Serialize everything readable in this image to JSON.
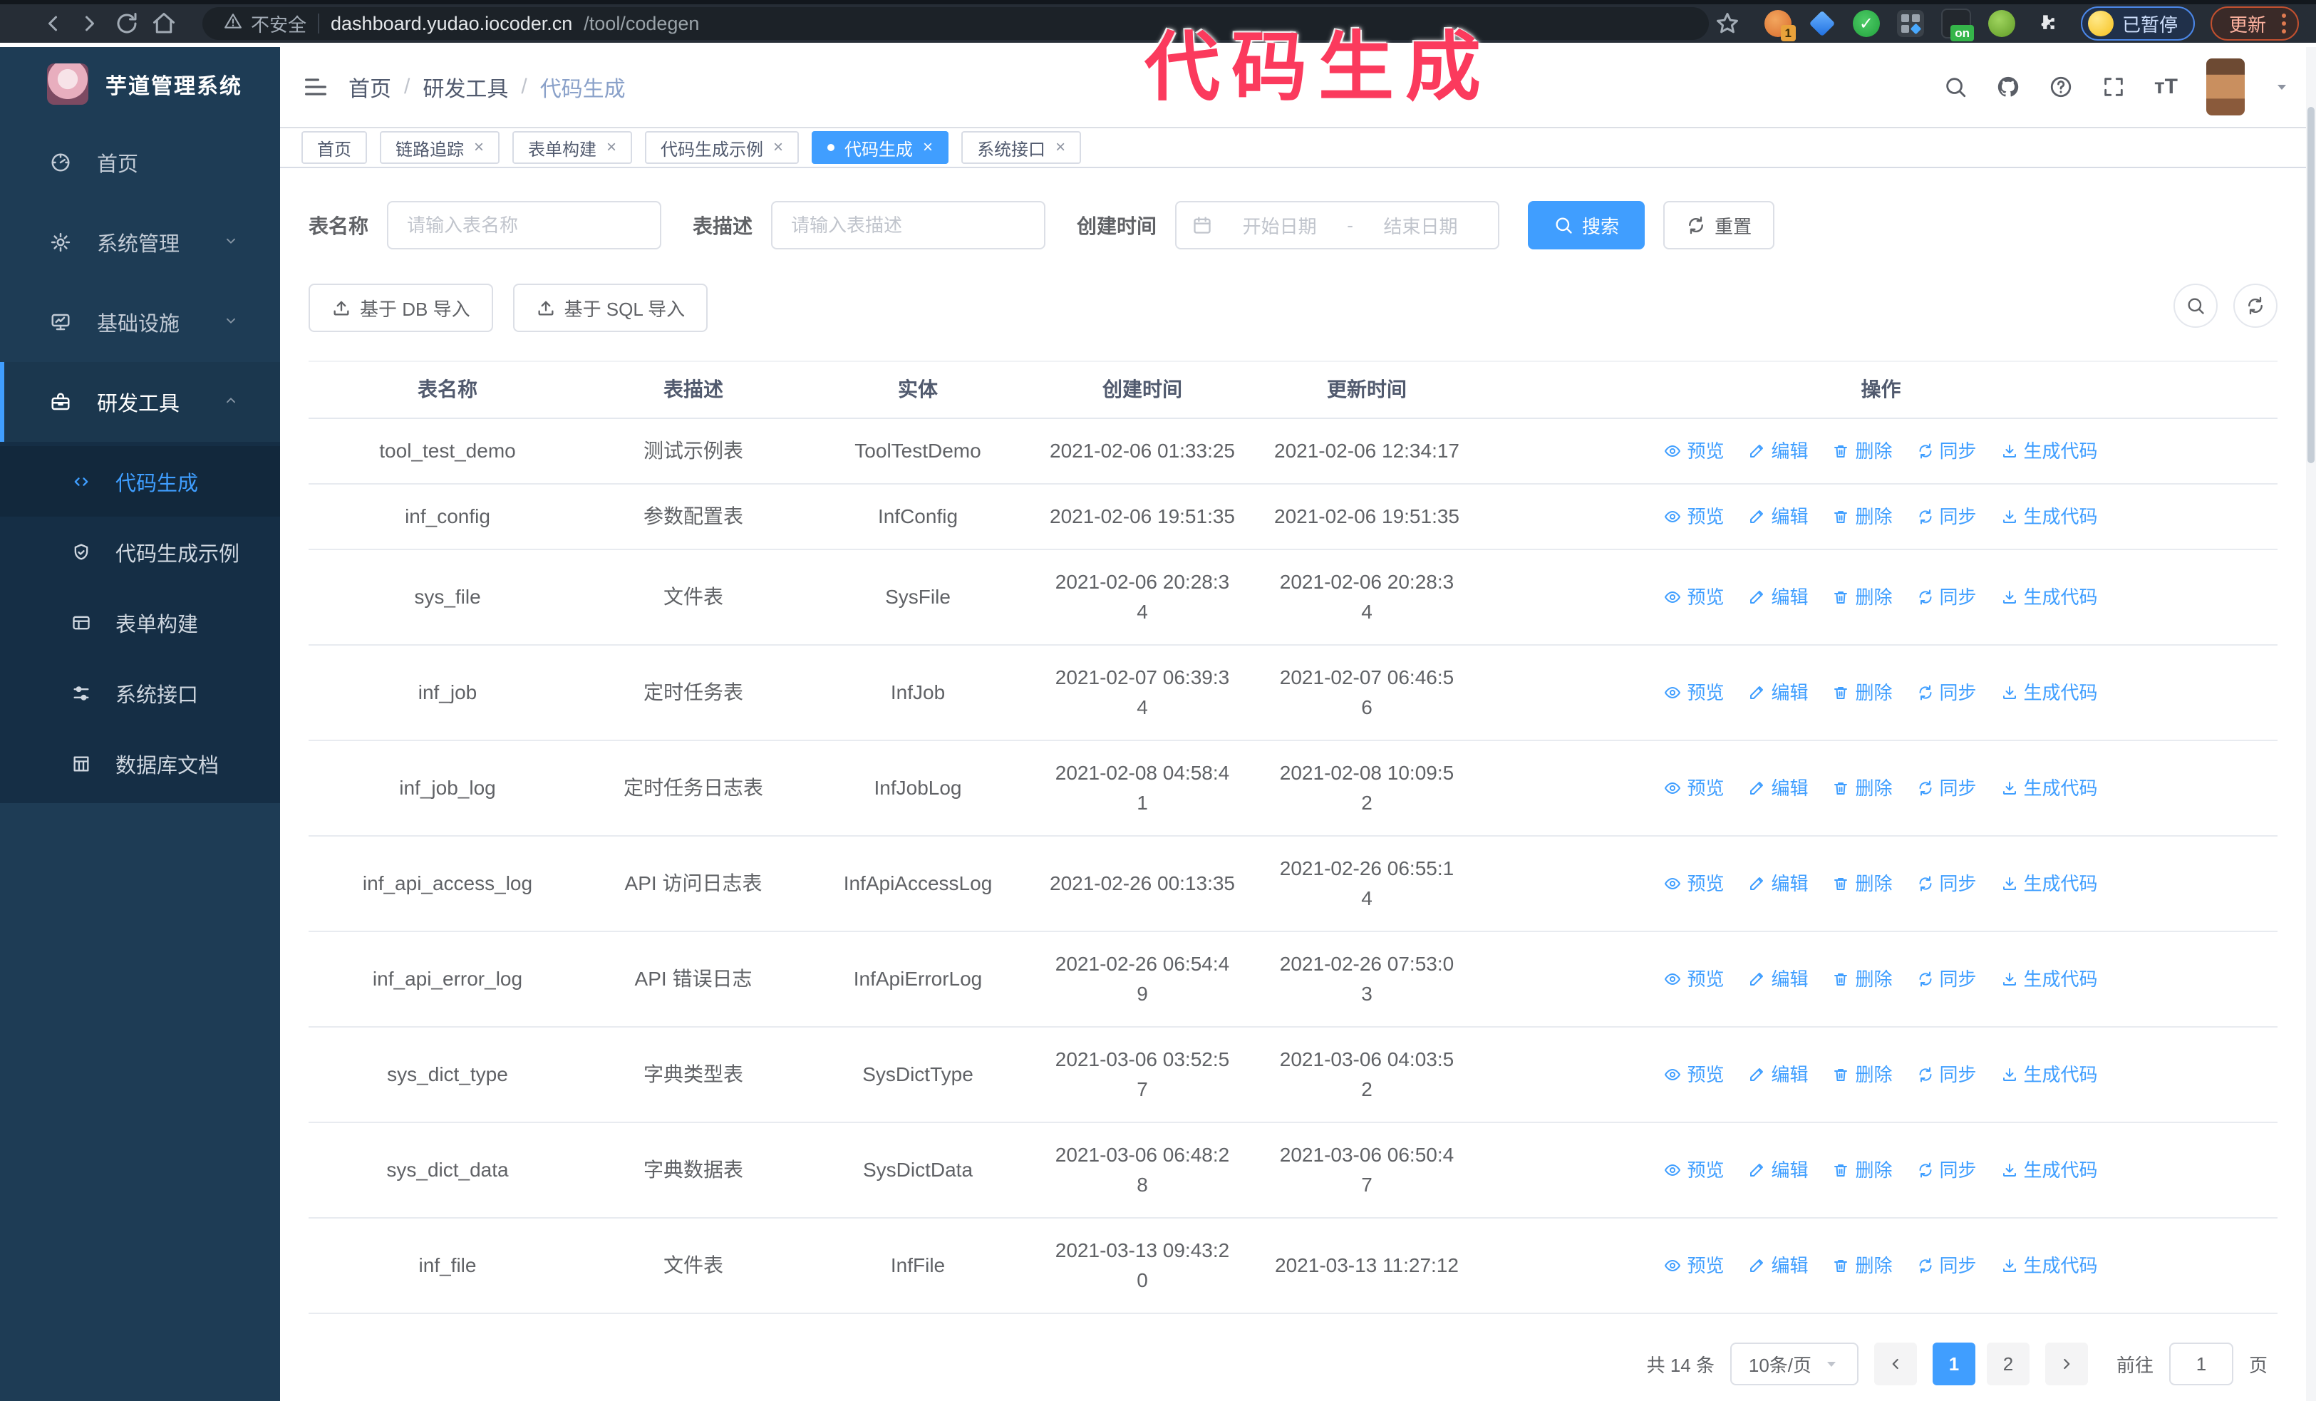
{
  "overlay_title": "代码生成",
  "browser": {
    "security_label": "不安全",
    "url_host": "dashboard.yudao.iocoder.cn",
    "url_path": "/tool/codegen",
    "extension_badge_count": "1",
    "extension_on_badge": "on",
    "paused_badge": "已暂停",
    "update_button": "更新"
  },
  "sidebar": {
    "app_title": "芋道管理系统",
    "menu": [
      {
        "label": "首页",
        "icon": "dashboard-icon",
        "chevron": null,
        "active": false
      },
      {
        "label": "系统管理",
        "icon": "gear-icon",
        "chevron": "down",
        "active": false
      },
      {
        "label": "基础设施",
        "icon": "monitor-icon",
        "chevron": "down",
        "active": false
      },
      {
        "label": "研发工具",
        "icon": "toolbox-icon",
        "chevron": "up",
        "active": true
      }
    ],
    "submenu": [
      {
        "label": "代码生成",
        "icon": "code-icon",
        "active": true
      },
      {
        "label": "代码生成示例",
        "icon": "shield-check-icon",
        "active": false
      },
      {
        "label": "表单构建",
        "icon": "form-icon",
        "active": false
      },
      {
        "label": "系统接口",
        "icon": "sliders-icon",
        "active": false
      },
      {
        "label": "数据库文档",
        "icon": "columns-icon",
        "active": false
      }
    ]
  },
  "header": {
    "breadcrumb": [
      "首页",
      "研发工具",
      "代码生成"
    ]
  },
  "tabs": [
    {
      "label": "首页",
      "closable": false,
      "active": false
    },
    {
      "label": "链路追踪",
      "closable": true,
      "active": false
    },
    {
      "label": "表单构建",
      "closable": true,
      "active": false
    },
    {
      "label": "代码生成示例",
      "closable": true,
      "active": false
    },
    {
      "label": "代码生成",
      "closable": true,
      "active": true
    },
    {
      "label": "系统接口",
      "closable": true,
      "active": false
    }
  ],
  "filters": {
    "table_name_label": "表名称",
    "table_name_placeholder": "请输入表名称",
    "table_desc_label": "表描述",
    "table_desc_placeholder": "请输入表描述",
    "create_time_label": "创建时间",
    "start_date_placeholder": "开始日期",
    "range_separator": "-",
    "end_date_placeholder": "结束日期",
    "search_button": "搜索",
    "reset_button": "重置"
  },
  "toolbar": {
    "db_import_button": "基于 DB 导入",
    "sql_import_button": "基于 SQL 导入"
  },
  "table": {
    "columns": [
      "表名称",
      "表描述",
      "实体",
      "创建时间",
      "更新时间",
      "操作"
    ],
    "row_actions": [
      {
        "label": "预览",
        "icon": "eye-icon"
      },
      {
        "label": "编辑",
        "icon": "edit-icon"
      },
      {
        "label": "删除",
        "icon": "trash-icon"
      },
      {
        "label": "同步",
        "icon": "sync-icon"
      },
      {
        "label": "生成代码",
        "icon": "download-icon"
      }
    ],
    "rows": [
      {
        "name": "tool_test_demo",
        "desc": "测试示例表",
        "entity": "ToolTestDemo",
        "created": "2021-02-06 01:33:25",
        "updated": "2021-02-06 12:34:17"
      },
      {
        "name": "inf_config",
        "desc": "参数配置表",
        "entity": "InfConfig",
        "created": "2021-02-06 19:51:35",
        "updated": "2021-02-06 19:51:35"
      },
      {
        "name": "sys_file",
        "desc": "文件表",
        "entity": "SysFile",
        "created": "2021-02-06 20:28:3\n4",
        "updated": "2021-02-06 20:28:3\n4"
      },
      {
        "name": "inf_job",
        "desc": "定时任务表",
        "entity": "InfJob",
        "created": "2021-02-07 06:39:3\n4",
        "updated": "2021-02-07 06:46:5\n6"
      },
      {
        "name": "inf_job_log",
        "desc": "定时任务日志表",
        "entity": "InfJobLog",
        "created": "2021-02-08 04:58:4\n1",
        "updated": "2021-02-08 10:09:5\n2"
      },
      {
        "name": "inf_api_access_log",
        "desc": "API 访问日志表",
        "entity": "InfApiAccessLog",
        "created": "2021-02-26 00:13:35",
        "updated": "2021-02-26 06:55:1\n4"
      },
      {
        "name": "inf_api_error_log",
        "desc": "API 错误日志",
        "entity": "InfApiErrorLog",
        "created": "2021-02-26 06:54:4\n9",
        "updated": "2021-02-26 07:53:0\n3"
      },
      {
        "name": "sys_dict_type",
        "desc": "字典类型表",
        "entity": "SysDictType",
        "created": "2021-03-06 03:52:5\n7",
        "updated": "2021-03-06 04:03:5\n2"
      },
      {
        "name": "sys_dict_data",
        "desc": "字典数据表",
        "entity": "SysDictData",
        "created": "2021-03-06 06:48:2\n8",
        "updated": "2021-03-06 06:50:4\n7"
      },
      {
        "name": "inf_file",
        "desc": "文件表",
        "entity": "InfFile",
        "created": "2021-03-13 09:43:2\n0",
        "updated": "2021-03-13 11:27:12"
      }
    ]
  },
  "pagination": {
    "total": "共 14 条",
    "page_size": "10条/页",
    "pages": [
      "1",
      "2"
    ],
    "active_page": "1",
    "goto_label": "前往",
    "goto_value": "1",
    "goto_unit": "页"
  },
  "colors": {
    "primary": "#409eff",
    "overlay_annotation": "#fb3a5d",
    "sidebar_bg": "#1e3c55",
    "submenu_bg": "#152e45"
  }
}
